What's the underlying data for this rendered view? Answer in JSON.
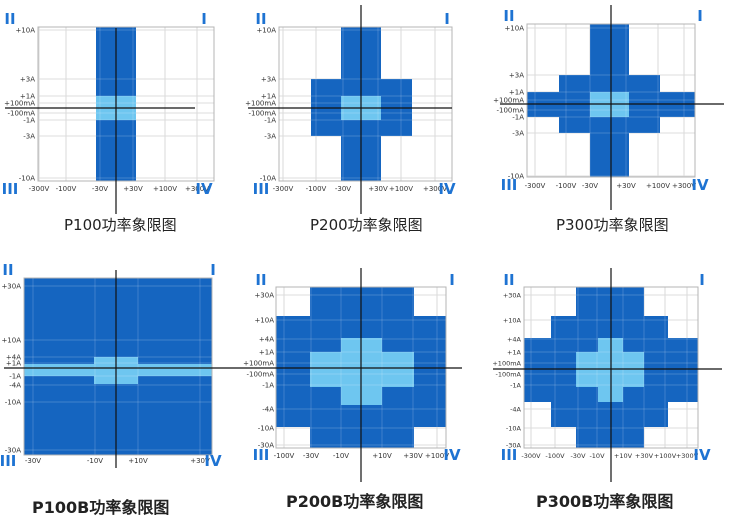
{
  "colors": {
    "dark_fill": "#1565c0",
    "light_fill": "#6ec6f0",
    "grid": "#c8c8c8",
    "frame": "#b4b4b4",
    "axis": "#111111",
    "quadrant_label": "#1e73d2",
    "tick_label": "#333333",
    "caption": "#222222"
  },
  "panels": [
    {
      "id": "p100",
      "caption": "P100功率象限图",
      "quadrants": [
        "I",
        "II",
        "III",
        "IV"
      ],
      "y_ticks": [
        "+10A",
        "+3A",
        "+1A",
        "+100mA",
        "-100mA",
        "-1A",
        "-3A",
        "-10A"
      ],
      "x_ticks": [
        "-300V",
        "-100V",
        "-30V",
        "+30V",
        "+100V",
        "+300V"
      ],
      "dark_region": "±30V @ ±10A",
      "light_region": "±30V @ ±1A"
    },
    {
      "id": "p200",
      "caption": "P200功率象限图",
      "quadrants": [
        "I",
        "II",
        "III",
        "IV"
      ],
      "y_ticks": [
        "+10A",
        "+3A",
        "+1A",
        "+100mA",
        "-100mA",
        "-1A",
        "-3A",
        "-10A"
      ],
      "x_ticks": [
        "-300V",
        "-100V",
        "-30V",
        "+30V",
        "+100V",
        "+300V"
      ],
      "dark_regions": [
        "±30V @ ±10A",
        "±100V @ ±3A"
      ],
      "light_region": "±30V @ ±1A"
    },
    {
      "id": "p300",
      "caption": "P300功率象限图",
      "quadrants": [
        "I",
        "II",
        "III",
        "IV"
      ],
      "y_ticks": [
        "+10A",
        "+3A",
        "+1A",
        "+100mA",
        "-100mA",
        "-1A",
        "-3A",
        "-10A"
      ],
      "x_ticks": [
        "-300V",
        "-100V",
        "-30V",
        "+30V",
        "+100V",
        "+300V"
      ],
      "dark_regions": [
        "±30V @ ±10A",
        "±100V @ ±3A",
        "±300V @ ±1A"
      ],
      "light_region": "±30V @ ±1A"
    },
    {
      "id": "p100b",
      "caption": "P100B功率象限图",
      "quadrants": [
        "I",
        "II",
        "III",
        "IV"
      ],
      "y_ticks": [
        "+30A",
        "+10A",
        "+4A",
        "+1A",
        "-1A",
        "-4A",
        "-10A",
        "-30A"
      ],
      "x_ticks": [
        "-30V",
        "-10V",
        "+10V",
        "+30V"
      ],
      "dark_region": "±30V @ ±30A",
      "light_regions": [
        "±10V @ ±4A",
        "±30V @ ±1A"
      ]
    },
    {
      "id": "p200b",
      "caption": "P200B功率象限图",
      "quadrants": [
        "I",
        "II",
        "III",
        "IV"
      ],
      "y_ticks": [
        "+30A",
        "+10A",
        "+4A",
        "+1A",
        "+100mA",
        "-100mA",
        "-1A",
        "-4A",
        "-10A",
        "-30A"
      ],
      "x_ticks": [
        "-100V",
        "-30V",
        "-10V",
        "+10V",
        "+30V",
        "+100V"
      ],
      "dark_regions": [
        "±30V @ ±30A",
        "±100V @ ±10A"
      ],
      "light_regions": [
        "±10V @ ±4A",
        "±30V @ ±1A"
      ]
    },
    {
      "id": "p300b",
      "caption": "P300B功率象限图",
      "quadrants": [
        "I",
        "II",
        "III",
        "IV"
      ],
      "y_ticks": [
        "+30A",
        "+10A",
        "+4A",
        "+1A",
        "+100mA",
        "-100mA",
        "-1A",
        "-4A",
        "-10A",
        "-30A"
      ],
      "x_ticks": [
        "-300V",
        "-100V",
        "-30V",
        "-10V",
        "+10V",
        "+30V",
        "+100V",
        "+300V"
      ],
      "dark_regions": [
        "±30V @ ±30A",
        "±100V @ ±10A",
        "±300V @ ±4A"
      ],
      "light_regions": [
        "±10V @ ±4A",
        "±30V @ ±1A"
      ]
    }
  ]
}
